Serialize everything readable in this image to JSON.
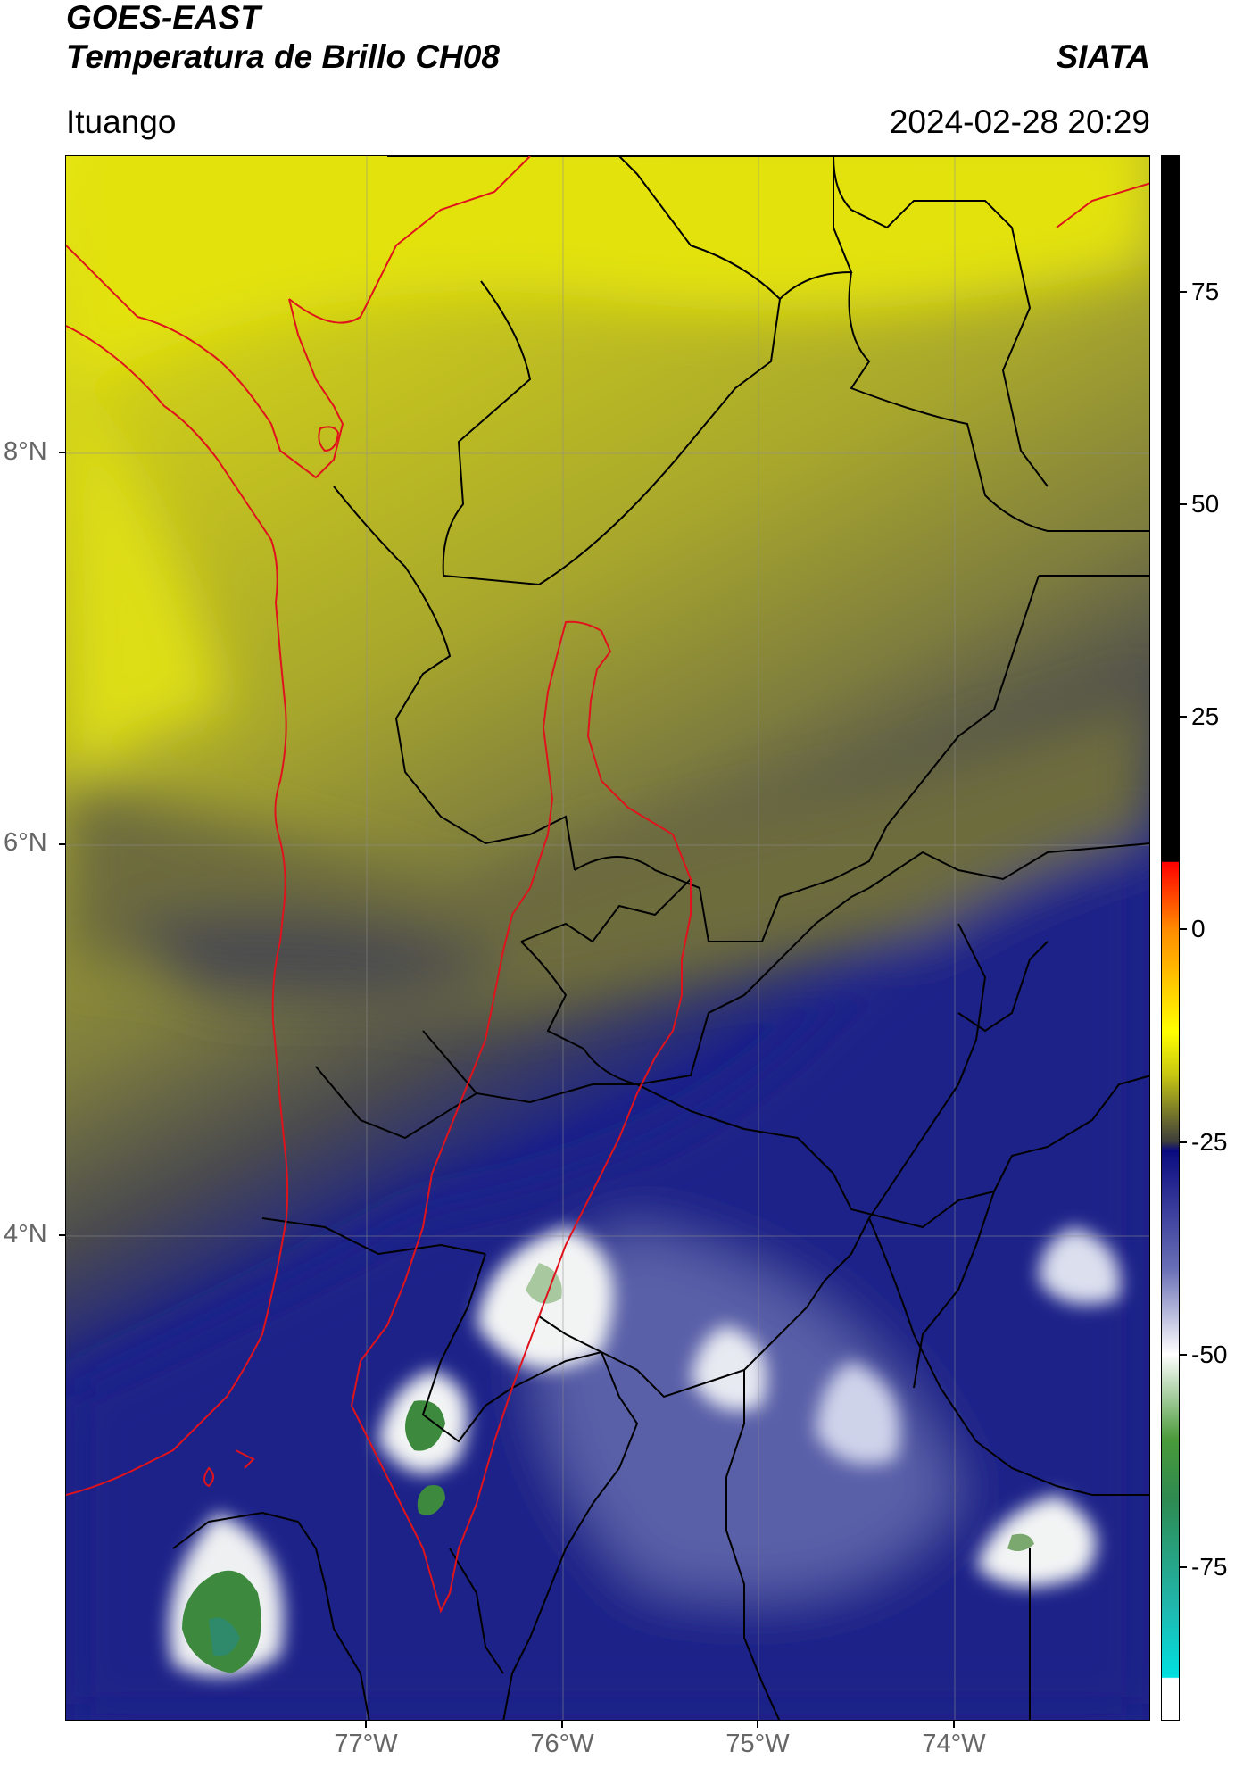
{
  "header": {
    "satellite": "GOES-EAST",
    "product": "Temperatura de Brillo CH08",
    "agency": "SIATA",
    "region": "Ituango",
    "datetime": "2024-02-28 20:29"
  },
  "map": {
    "lat_labels": [
      "8°N",
      "6°N",
      "4°N"
    ],
    "lon_labels": [
      "77°W",
      "76°W",
      "75°W",
      "74°W"
    ],
    "lat_values": [
      8,
      6,
      4
    ],
    "lon_values": [
      -77,
      -76,
      -75,
      -74
    ],
    "extent": {
      "lon_min": -78.54,
      "lon_max": -73.0,
      "lat_min": 1.53,
      "lat_max": 9.53
    },
    "colors": {
      "coastline": "#e0131c",
      "basin": "#e0131c",
      "borders": "#000000",
      "warm_yellow": "#e8e80a",
      "olive": "#6f6f3c",
      "cold_navy": "#1c2288",
      "cold_white": "#f2f4f4",
      "cold_green": "#3d8a3e"
    }
  },
  "colorbar": {
    "ticks": [
      "75",
      "50",
      "25",
      "0",
      "-25",
      "-50",
      "-75"
    ],
    "tick_values": [
      75,
      50,
      25,
      0,
      -25,
      -50,
      -75
    ],
    "range": [
      -93,
      91
    ],
    "stops": [
      {
        "v": 91,
        "c": "#000000"
      },
      {
        "v": 8,
        "c": "#000000"
      },
      {
        "v": 7.9,
        "c": "#ff0000"
      },
      {
        "v": 0,
        "c": "#ff8c00"
      },
      {
        "v": -12,
        "c": "#ffff00"
      },
      {
        "v": -17,
        "c": "#c8c812"
      },
      {
        "v": -25,
        "c": "#3c3c3c"
      },
      {
        "v": -26,
        "c": "#0a0a80"
      },
      {
        "v": -40,
        "c": "#6a70b6"
      },
      {
        "v": -50,
        "c": "#ffffff"
      },
      {
        "v": -60,
        "c": "#4a9a3a"
      },
      {
        "v": -67,
        "c": "#2e8a50"
      },
      {
        "v": -80,
        "c": "#20b8b0"
      },
      {
        "v": -88,
        "c": "#00e0e0"
      },
      {
        "v": -88.1,
        "c": "#ffffff"
      },
      {
        "v": -93,
        "c": "#ffffff"
      }
    ]
  }
}
